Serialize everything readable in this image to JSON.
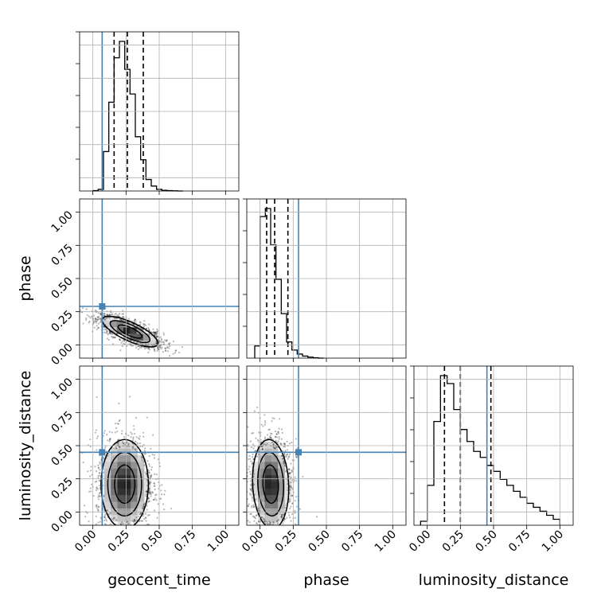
{
  "colors": {
    "truth": "#4682b4",
    "hist": "#000000",
    "grid": "#b0b0b0",
    "scatter": "#000000"
  },
  "chart_data": {
    "type": "corner",
    "grid": true,
    "parameters": [
      "geocent_time",
      "phase",
      "luminosity_distance"
    ],
    "axis_range": [
      -0.1,
      1.1
    ],
    "ticks": [
      0.0,
      0.25,
      0.5,
      0.75,
      1.0
    ],
    "tick_labels": [
      "0.00",
      "0.25",
      "0.50",
      "0.75",
      "1.00"
    ],
    "truth": {
      "geocent_time": 0.07,
      "phase": 0.29,
      "luminosity_distance": 0.45
    },
    "quantiles": {
      "geocent_time": [
        0.16,
        0.26,
        0.38
      ],
      "phase": [
        0.05,
        0.11,
        0.21
      ],
      "luminosity_distance": [
        0.13,
        0.25,
        0.48
      ]
    },
    "histograms": {
      "geocent_time": {
        "bin_edges": [
          0.0,
          0.04,
          0.08,
          0.12,
          0.16,
          0.2,
          0.24,
          0.28,
          0.32,
          0.36,
          0.4,
          0.44,
          0.48,
          0.52,
          0.56,
          0.6,
          0.64,
          0.68
        ],
        "counts": [
          0.002,
          0.01,
          0.24,
          0.54,
          0.81,
          0.91,
          0.74,
          0.59,
          0.33,
          0.19,
          0.07,
          0.03,
          0.01,
          0.004,
          0.002,
          0.001,
          0.0
        ]
      },
      "phase": {
        "bin_edges": [
          -0.04,
          0.0,
          0.04,
          0.08,
          0.12,
          0.16,
          0.2,
          0.24,
          0.28,
          0.32,
          0.36,
          0.4,
          0.44,
          0.48
        ],
        "counts": [
          0.06,
          0.7,
          0.74,
          0.56,
          0.39,
          0.22,
          0.08,
          0.04,
          0.02,
          0.01,
          0.005,
          0.002,
          0.0
        ]
      },
      "luminosity_distance": {
        "bin_edges": [
          -0.05,
          0.0,
          0.05,
          0.1,
          0.15,
          0.2,
          0.25,
          0.3,
          0.35,
          0.4,
          0.45,
          0.5,
          0.55,
          0.6,
          0.65,
          0.7,
          0.75,
          0.8,
          0.85,
          0.9,
          0.95,
          1.0
        ],
        "counts": [
          0.02,
          0.2,
          0.52,
          0.75,
          0.71,
          0.58,
          0.48,
          0.42,
          0.37,
          0.34,
          0.3,
          0.27,
          0.23,
          0.2,
          0.17,
          0.14,
          0.11,
          0.09,
          0.07,
          0.05,
          0.03
        ]
      }
    },
    "density_2d": {
      "phase_vs_geocent_time": {
        "center": [
          0.28,
          0.1
        ],
        "spread": [
          0.1,
          0.055
        ],
        "correlation": -0.75,
        "n_points": 1400
      },
      "luminosity_distance_vs_geocent_time": {
        "center": [
          0.24,
          0.21
        ],
        "spread": [
          0.085,
          0.16
        ],
        "correlation": 0.0,
        "n_points": 1600
      },
      "luminosity_distance_vs_phase": {
        "center": [
          0.08,
          0.21
        ],
        "spread": [
          0.065,
          0.16
        ],
        "correlation": -0.1,
        "n_points": 1500
      }
    }
  }
}
